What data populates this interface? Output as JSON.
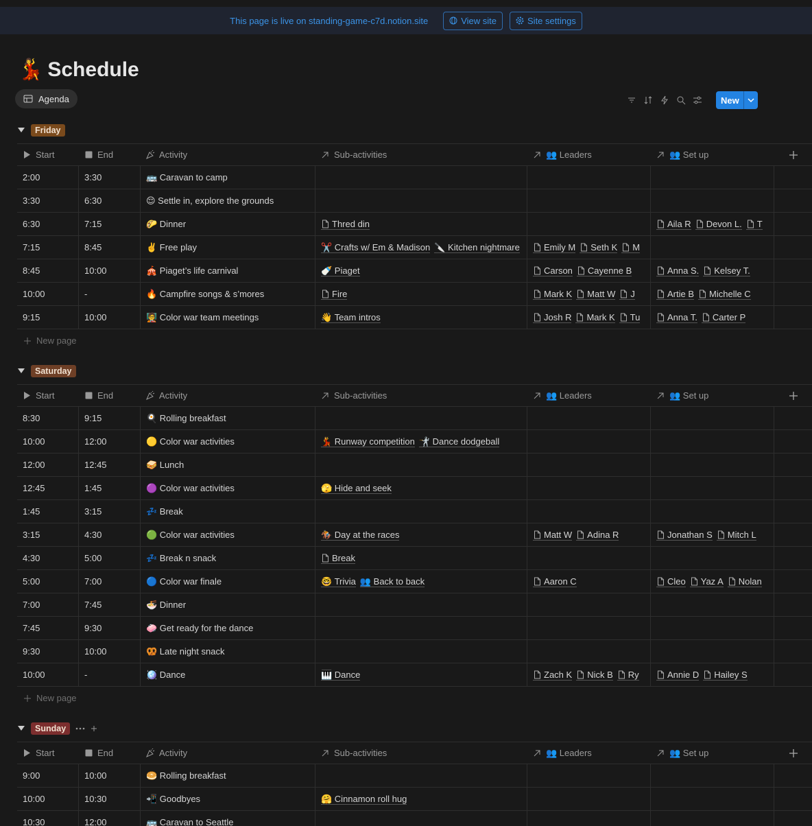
{
  "banner": {
    "text": "This page is live on standing-game-c7d.notion.site",
    "view_site": "View site",
    "site_settings": "Site settings"
  },
  "page": {
    "icon": "💃",
    "title": "Schedule"
  },
  "view": {
    "tab": "Agenda",
    "new_button": "New"
  },
  "columns": [
    "Start",
    "End",
    "Activity",
    "Sub-activities",
    "👥 Leaders",
    "👥 Set up"
  ],
  "groups": [
    {
      "name": "Friday",
      "color": "#7a4a1c",
      "new_page": "New page",
      "rows": [
        {
          "start": "2:00",
          "end": "3:30",
          "activity": "🚌 Caravan to camp",
          "sub": [],
          "leaders": [],
          "setup": []
        },
        {
          "start": "3:30",
          "end": "6:30",
          "activity": "😌 Settle in, explore the grounds",
          "sub": [],
          "leaders": [],
          "setup": []
        },
        {
          "start": "6:30",
          "end": "7:15",
          "activity": "🌮 Dinner",
          "sub": [
            "Thred din"
          ],
          "leaders": [],
          "setup": [
            "Aila R",
            "Devon L.",
            "T"
          ]
        },
        {
          "start": "7:15",
          "end": "8:45",
          "activity": "✌️ Free play",
          "sub": [
            "✂️ Crafts w/ Em & Madison",
            "🔪 Kitchen nightmare"
          ],
          "leaders": [
            "Emily M",
            "Seth K",
            "M"
          ],
          "setup": []
        },
        {
          "start": "8:45",
          "end": "10:00",
          "activity": "🎪 Piaget’s life carnival",
          "sub": [
            "🍼 Piaget"
          ],
          "leaders": [
            "Carson",
            "Cayenne B"
          ],
          "setup": [
            "Anna S.",
            "Kelsey T."
          ]
        },
        {
          "start": "10:00",
          "end": "-",
          "activity": "🔥 Campfire songs & s’mores",
          "sub": [
            "Fire"
          ],
          "leaders": [
            "Mark K",
            "Matt W",
            "J"
          ],
          "setup": [
            "Artie B",
            "Michelle C"
          ]
        },
        {
          "start": "9:15",
          "end": "10:00",
          "activity": "🧑‍🏫 Color war team meetings",
          "sub": [
            "👋 Team intros"
          ],
          "leaders": [
            "Josh R",
            "Mark K",
            "Tu"
          ],
          "setup": [
            "Anna T.",
            "Carter P"
          ]
        }
      ]
    },
    {
      "name": "Saturday",
      "color": "#6e3f26",
      "new_page": "New page",
      "rows": [
        {
          "start": "8:30",
          "end": "9:15",
          "activity": "🍳 Rolling breakfast",
          "sub": [],
          "leaders": [],
          "setup": []
        },
        {
          "start": "10:00",
          "end": "12:00",
          "activity": "🟡 Color war activities",
          "sub": [
            "💃 Runway competition",
            "🤺 Dance dodgeball"
          ],
          "leaders": [],
          "setup": []
        },
        {
          "start": "12:00",
          "end": "12:45",
          "activity": "🥪 Lunch",
          "sub": [],
          "leaders": [],
          "setup": []
        },
        {
          "start": "12:45",
          "end": "1:45",
          "activity": "🟣 Color war activities",
          "sub": [
            "🫣 Hide and seek"
          ],
          "leaders": [],
          "setup": []
        },
        {
          "start": "1:45",
          "end": "3:15",
          "activity": "💤 Break",
          "sub": [],
          "leaders": [],
          "setup": []
        },
        {
          "start": "3:15",
          "end": "4:30",
          "activity": "🟢 Color war activities",
          "sub": [
            "🏇 Day at the races"
          ],
          "leaders": [
            "Matt W",
            "Adina R"
          ],
          "setup": [
            "Jonathan S",
            "Mitch L"
          ]
        },
        {
          "start": "4:30",
          "end": "5:00",
          "activity": "💤 Break n snack",
          "sub": [
            "Break"
          ],
          "leaders": [],
          "setup": []
        },
        {
          "start": "5:00",
          "end": "7:00",
          "activity": "🔵 Color war finale",
          "sub": [
            "🤓 Trivia",
            "👥 Back to back"
          ],
          "leaders": [
            "Aaron C"
          ],
          "setup": [
            "Cleo",
            "Yaz A",
            "Nolan"
          ]
        },
        {
          "start": "7:00",
          "end": "7:45",
          "activity": "🍜 Dinner",
          "sub": [],
          "leaders": [],
          "setup": []
        },
        {
          "start": "7:45",
          "end": "9:30",
          "activity": "🧼 Get ready for the dance",
          "sub": [],
          "leaders": [],
          "setup": []
        },
        {
          "start": "9:30",
          "end": "10:00",
          "activity": "🥨 Late night snack",
          "sub": [],
          "leaders": [],
          "setup": []
        },
        {
          "start": "10:00",
          "end": "-",
          "activity": "🪩 Dance",
          "sub": [
            "🎹 Dance"
          ],
          "leaders": [
            "Zach K",
            "Nick B",
            "Ry"
          ],
          "setup": [
            "Annie D",
            "Hailey S"
          ]
        }
      ]
    },
    {
      "name": "Sunday",
      "color": "#7c2e2e",
      "rows": [
        {
          "start": "9:00",
          "end": "10:00",
          "activity": "🥯 Rolling breakfast",
          "sub": [],
          "leaders": [],
          "setup": []
        },
        {
          "start": "10:00",
          "end": "10:30",
          "activity": "📲 Goodbyes",
          "sub": [
            "🤗 Cinnamon roll hug"
          ],
          "leaders": [],
          "setup": []
        },
        {
          "start": "10:30",
          "end": "12:00",
          "activity": "🚌 Caravan to Seattle",
          "sub": [],
          "leaders": [],
          "setup": []
        }
      ]
    }
  ]
}
